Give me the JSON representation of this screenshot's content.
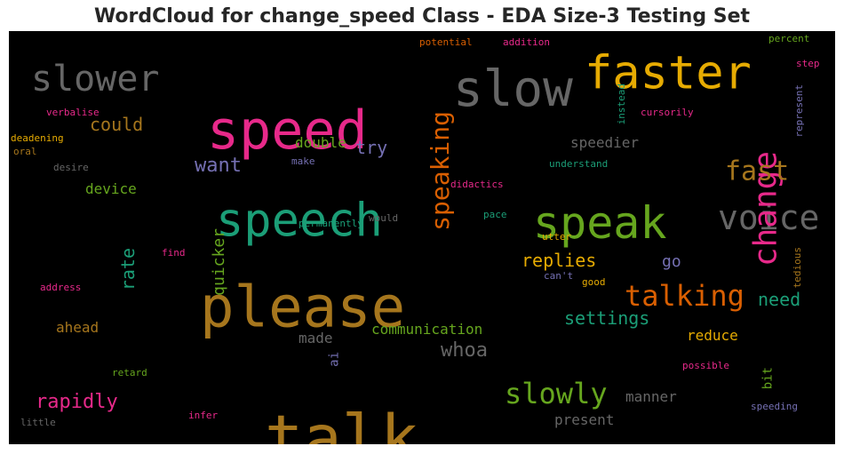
{
  "title": "WordCloud for change_speed Class - EDA Size-3 Testing Set",
  "chart_data": {
    "type": "wordcloud",
    "title": "WordCloud for change_speed Class - EDA Size-3 Testing Set",
    "background": "#000000",
    "colormap": "Dark2",
    "words": [
      {
        "text": "please",
        "weight": 1.0,
        "color": "#A6761D",
        "orientation": "horizontal"
      },
      {
        "text": "talk",
        "weight": 0.98,
        "color": "#A6761D",
        "orientation": "horizontal"
      },
      {
        "text": "speed",
        "weight": 0.9,
        "color": "#E7298A",
        "orientation": "horizontal"
      },
      {
        "text": "speech",
        "weight": 0.85,
        "color": "#1B9E77",
        "orientation": "horizontal"
      },
      {
        "text": "slow",
        "weight": 0.8,
        "color": "#666666",
        "orientation": "horizontal"
      },
      {
        "text": "speak",
        "weight": 0.78,
        "color": "#66A61E",
        "orientation": "horizontal"
      },
      {
        "text": "faster",
        "weight": 0.75,
        "color": "#E6AB02",
        "orientation": "horizontal"
      },
      {
        "text": "voice",
        "weight": 0.6,
        "color": "#666666",
        "orientation": "horizontal"
      },
      {
        "text": "slower",
        "weight": 0.6,
        "color": "#666666",
        "orientation": "horizontal"
      },
      {
        "text": "change",
        "weight": 0.55,
        "color": "#E7298A",
        "orientation": "vertical"
      },
      {
        "text": "speaking",
        "weight": 0.5,
        "color": "#D95F02",
        "orientation": "vertical"
      },
      {
        "text": "talking",
        "weight": 0.5,
        "color": "#D95F02",
        "orientation": "horizontal"
      },
      {
        "text": "slowly",
        "weight": 0.5,
        "color": "#66A61E",
        "orientation": "horizontal"
      },
      {
        "text": "fast",
        "weight": 0.45,
        "color": "#A6761D",
        "orientation": "horizontal"
      },
      {
        "text": "rapidly",
        "weight": 0.35,
        "color": "#E7298A",
        "orientation": "horizontal"
      },
      {
        "text": "want",
        "weight": 0.33,
        "color": "#7570B3",
        "orientation": "horizontal"
      },
      {
        "text": "could",
        "weight": 0.33,
        "color": "#A6761D",
        "orientation": "horizontal"
      },
      {
        "text": "rate",
        "weight": 0.33,
        "color": "#1B9E77",
        "orientation": "vertical"
      },
      {
        "text": "replies",
        "weight": 0.3,
        "color": "#E6AB02",
        "orientation": "horizontal"
      },
      {
        "text": "settings",
        "weight": 0.3,
        "color": "#1B9E77",
        "orientation": "horizontal"
      },
      {
        "text": "need",
        "weight": 0.3,
        "color": "#1B9E77",
        "orientation": "horizontal"
      },
      {
        "text": "whoa",
        "weight": 0.3,
        "color": "#666666",
        "orientation": "horizontal"
      },
      {
        "text": "try",
        "weight": 0.3,
        "color": "#7570B3",
        "orientation": "horizontal"
      },
      {
        "text": "quicker",
        "weight": 0.28,
        "color": "#66A61E",
        "orientation": "vertical"
      },
      {
        "text": "go",
        "weight": 0.26,
        "color": "#7570B3",
        "orientation": "horizontal"
      },
      {
        "text": "communication",
        "weight": 0.24,
        "color": "#66A61E",
        "orientation": "horizontal"
      },
      {
        "text": "double",
        "weight": 0.22,
        "color": "#66A61E",
        "orientation": "horizontal"
      },
      {
        "text": "speedier",
        "weight": 0.22,
        "color": "#666666",
        "orientation": "horizontal"
      },
      {
        "text": "device",
        "weight": 0.22,
        "color": "#66A61E",
        "orientation": "horizontal"
      },
      {
        "text": "ahead",
        "weight": 0.22,
        "color": "#A6761D",
        "orientation": "horizontal"
      },
      {
        "text": "manner",
        "weight": 0.22,
        "color": "#666666",
        "orientation": "horizontal"
      },
      {
        "text": "present",
        "weight": 0.22,
        "color": "#666666",
        "orientation": "horizontal"
      },
      {
        "text": "reduce",
        "weight": 0.22,
        "color": "#E6AB02",
        "orientation": "horizontal"
      },
      {
        "text": "made",
        "weight": 0.22,
        "color": "#666666",
        "orientation": "horizontal"
      },
      {
        "text": "bit",
        "weight": 0.2,
        "color": "#66A61E",
        "orientation": "vertical"
      },
      {
        "text": "ai",
        "weight": 0.2,
        "color": "#7570B3",
        "orientation": "vertical"
      },
      {
        "text": "understand",
        "weight": 0.15,
        "color": "#1B9E77",
        "orientation": "horizontal"
      },
      {
        "text": "didactics",
        "weight": 0.15,
        "color": "#E7298A",
        "orientation": "horizontal"
      },
      {
        "text": "cursorily",
        "weight": 0.15,
        "color": "#E7298A",
        "orientation": "horizontal"
      },
      {
        "text": "permanently",
        "weight": 0.15,
        "color": "#1B9E77",
        "orientation": "horizontal"
      },
      {
        "text": "pace",
        "weight": 0.15,
        "color": "#1B9E77",
        "orientation": "horizontal"
      },
      {
        "text": "utter",
        "weight": 0.15,
        "color": "#E6AB02",
        "orientation": "horizontal"
      },
      {
        "text": "can't",
        "weight": 0.15,
        "color": "#7570B3",
        "orientation": "horizontal"
      },
      {
        "text": "good",
        "weight": 0.15,
        "color": "#E6AB02",
        "orientation": "horizontal"
      },
      {
        "text": "possible",
        "weight": 0.15,
        "color": "#E7298A",
        "orientation": "horizontal"
      },
      {
        "text": "speeding",
        "weight": 0.15,
        "color": "#7570B3",
        "orientation": "horizontal"
      },
      {
        "text": "infer",
        "weight": 0.15,
        "color": "#E7298A",
        "orientation": "horizontal"
      },
      {
        "text": "retard",
        "weight": 0.15,
        "color": "#66A61E",
        "orientation": "horizontal"
      },
      {
        "text": "little",
        "weight": 0.15,
        "color": "#666666",
        "orientation": "horizontal"
      },
      {
        "text": "address",
        "weight": 0.15,
        "color": "#E7298A",
        "orientation": "horizontal"
      },
      {
        "text": "find",
        "weight": 0.15,
        "color": "#E7298A",
        "orientation": "horizontal"
      },
      {
        "text": "would",
        "weight": 0.15,
        "color": "#666666",
        "orientation": "horizontal"
      },
      {
        "text": "make",
        "weight": 0.15,
        "color": "#7570B3",
        "orientation": "horizontal"
      },
      {
        "text": "desire",
        "weight": 0.15,
        "color": "#666666",
        "orientation": "horizontal"
      },
      {
        "text": "oral",
        "weight": 0.15,
        "color": "#A6761D",
        "orientation": "horizontal"
      },
      {
        "text": "deadening",
        "weight": 0.15,
        "color": "#E6AB02",
        "orientation": "horizontal"
      },
      {
        "text": "verbalise",
        "weight": 0.15,
        "color": "#E7298A",
        "orientation": "horizontal"
      },
      {
        "text": "potential",
        "weight": 0.15,
        "color": "#D95F02",
        "orientation": "horizontal"
      },
      {
        "text": "addition",
        "weight": 0.15,
        "color": "#E7298A",
        "orientation": "horizontal"
      },
      {
        "text": "instead",
        "weight": 0.15,
        "color": "#1B9E77",
        "orientation": "vertical"
      },
      {
        "text": "percent",
        "weight": 0.15,
        "color": "#66A61E",
        "orientation": "horizontal"
      },
      {
        "text": "step",
        "weight": 0.15,
        "color": "#E7298A",
        "orientation": "horizontal"
      },
      {
        "text": "represent",
        "weight": 0.15,
        "color": "#7570B3",
        "orientation": "vertical"
      },
      {
        "text": "tedious",
        "weight": 0.15,
        "color": "#A6761D",
        "orientation": "vertical"
      }
    ]
  }
}
